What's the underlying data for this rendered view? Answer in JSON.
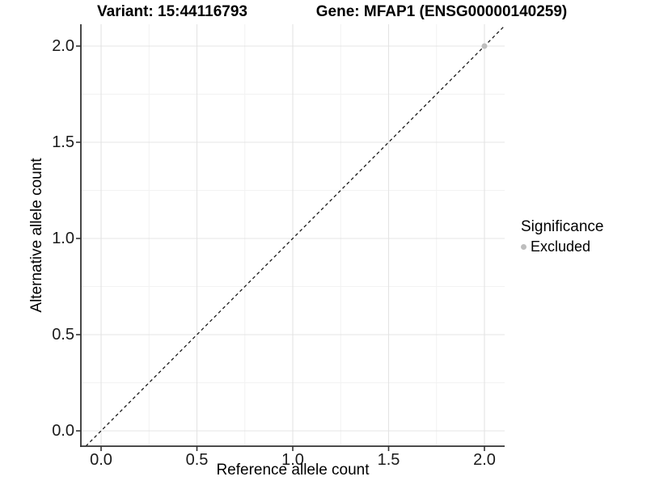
{
  "titles": {
    "variant": "Variant: 15:44116793",
    "gene": "Gene: MFAP1 (ENSG00000140259)"
  },
  "chart_data": {
    "type": "scatter",
    "title_left": "Variant: 15:44116793",
    "title_right": "Gene: MFAP1 (ENSG00000140259)",
    "xlabel": "Reference allele count",
    "ylabel": "Alternative allele count",
    "xlim": [
      -0.105,
      2.105
    ],
    "ylim": [
      -0.08,
      2.113
    ],
    "xticks": [
      0.0,
      0.5,
      1.0,
      1.5,
      2.0
    ],
    "yticks": [
      0.0,
      0.5,
      1.0,
      1.5,
      2.0
    ],
    "xtick_labels": [
      "0.0",
      "0.5",
      "1.0",
      "1.5",
      "2.0"
    ],
    "ytick_labels": [
      "0.0",
      "0.5",
      "1.0",
      "1.5",
      "2.0"
    ],
    "minor_ticks": [
      0.25,
      0.75,
      1.25,
      1.75
    ],
    "grid": true,
    "legend_position": "right",
    "series": [
      {
        "name": "Excluded",
        "color": "#BEBEBE",
        "points": [
          [
            2.0,
            2.0
          ]
        ]
      }
    ],
    "reference_line": {
      "style": "dashed",
      "slope": 1,
      "intercept": 0
    },
    "legend": {
      "title": "Significance",
      "entries": [
        {
          "label": "Excluded",
          "color": "#BEBEBE"
        }
      ]
    },
    "colors": {
      "point": "#BEBEBE",
      "grid_major": "#E4E4E4",
      "grid_minor": "#F2F2F2",
      "axis": "#333333",
      "reference_line": "#1A1A1A",
      "background": "#FFFFFF"
    }
  }
}
